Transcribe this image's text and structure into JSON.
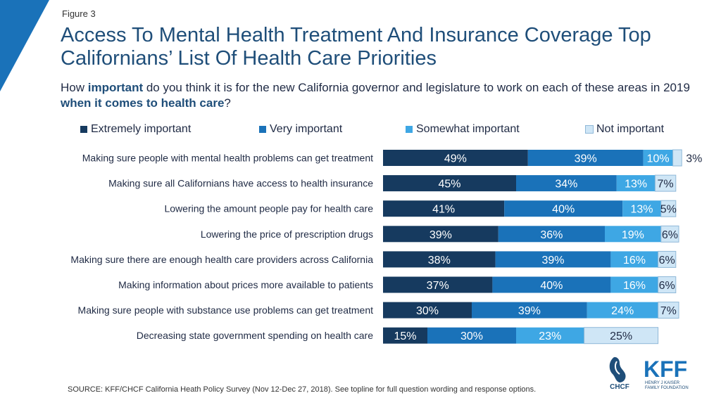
{
  "figure_label": "Figure 3",
  "title": "Access To Mental Health Treatment And Insurance Coverage Top Californians’ List Of Health Care Priorities",
  "subtitle": {
    "p1": "How ",
    "b1": "important",
    "p2": " do you think it is for the new California governor and legislature to work on each of these areas in 2019 ",
    "b2": "when it comes to health care",
    "p3": "?"
  },
  "source": "SOURCE: KFF/CHCF California Heath Policy Survey (Nov 12-Dec 27, 2018). See topline for full question wording and response options.",
  "logos": {
    "chcf": "CHCF",
    "kff": "KFF",
    "kff_sub1": "HENRY J KAISER",
    "kff_sub2": "FAMILY FOUNDATION"
  },
  "colors": {
    "extremely": "#163a5f",
    "very": "#1a72b9",
    "somewhat": "#3ea7e4",
    "not": "#cfe6f6",
    "title": "#1f4e79"
  },
  "chart_data": {
    "type": "bar",
    "orientation": "horizontal",
    "stacked": true,
    "legend_position": "top",
    "categories": [
      "Making sure people with mental health problems can get treatment",
      "Making sure all Californians have access to health insurance",
      "Lowering the amount people pay for health care",
      "Lowering the price of prescription drugs",
      "Making sure there are enough health care providers across California",
      "Making information about prices more available to patients",
      "Making sure people with substance use problems can get treatment",
      "Decreasing state government spending on health care"
    ],
    "series": [
      {
        "name": "Extremely important",
        "values": [
          49,
          45,
          41,
          39,
          38,
          37,
          30,
          15
        ]
      },
      {
        "name": "Very important",
        "values": [
          39,
          34,
          40,
          36,
          39,
          40,
          39,
          30
        ]
      },
      {
        "name": "Somewhat important",
        "values": [
          10,
          13,
          13,
          19,
          16,
          16,
          24,
          23
        ]
      },
      {
        "name": "Not important",
        "values": [
          3,
          7,
          5,
          6,
          6,
          6,
          7,
          25
        ]
      }
    ],
    "value_suffix": "%"
  }
}
